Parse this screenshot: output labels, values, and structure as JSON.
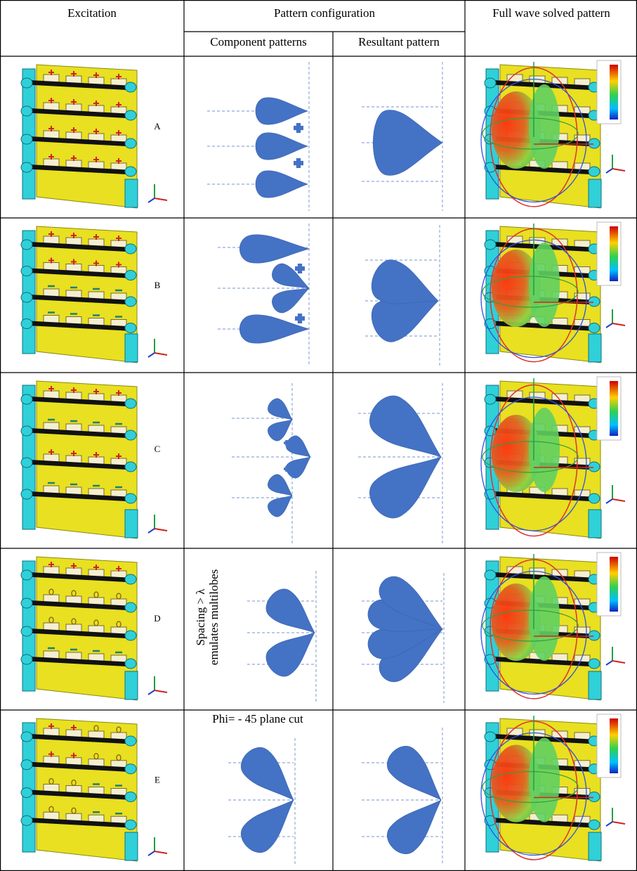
{
  "header": {
    "excitation": "Excitation",
    "pattern_configuration": "Pattern configuration",
    "component_patterns": "Component patterns",
    "resultant_pattern": "Resultant pattern",
    "full_wave": "Full wave solved pattern"
  },
  "rows": [
    {
      "label": "A"
    },
    {
      "label": "B"
    },
    {
      "label": "C"
    },
    {
      "label": "D",
      "component_note": [
        "Spacing > λ",
        "emulates multilobes"
      ]
    },
    {
      "label": "E",
      "component_note": "Phi= - 45 plane cut"
    }
  ]
}
